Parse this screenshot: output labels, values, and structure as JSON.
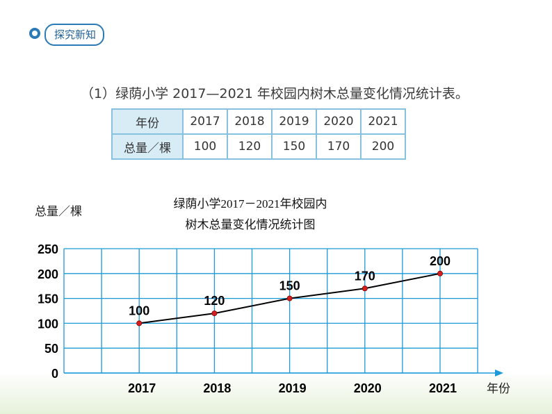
{
  "section_tag": "探究新知",
  "table": {
    "caption": "（1）绿荫小学 2017—2021 年校园内树木总量变化情况统计表。",
    "row_headers": [
      "年份",
      "总量／棵"
    ],
    "years": [
      "2017",
      "2018",
      "2019",
      "2020",
      "2021"
    ],
    "totals": [
      "100",
      "120",
      "150",
      "170",
      "200"
    ]
  },
  "chart_data": {
    "type": "line",
    "title_line1": "绿荫小学2017－2021年校园内",
    "title_line2": "树木总量变化情况统计图",
    "ylabel": "总量／棵",
    "xlabel": "年份",
    "categories": [
      "2017",
      "2018",
      "2019",
      "2020",
      "2021"
    ],
    "values": [
      100,
      120,
      150,
      170,
      200
    ],
    "data_labels": [
      "100",
      "120",
      "150",
      "170",
      "200"
    ],
    "y_ticks": [
      "0",
      "50",
      "100",
      "150",
      "200",
      "250"
    ],
    "ylim": [
      0,
      250
    ],
    "grid": true,
    "colors": {
      "grid": "#1a9ad8",
      "line": "#000000",
      "point": "#d42020"
    }
  }
}
